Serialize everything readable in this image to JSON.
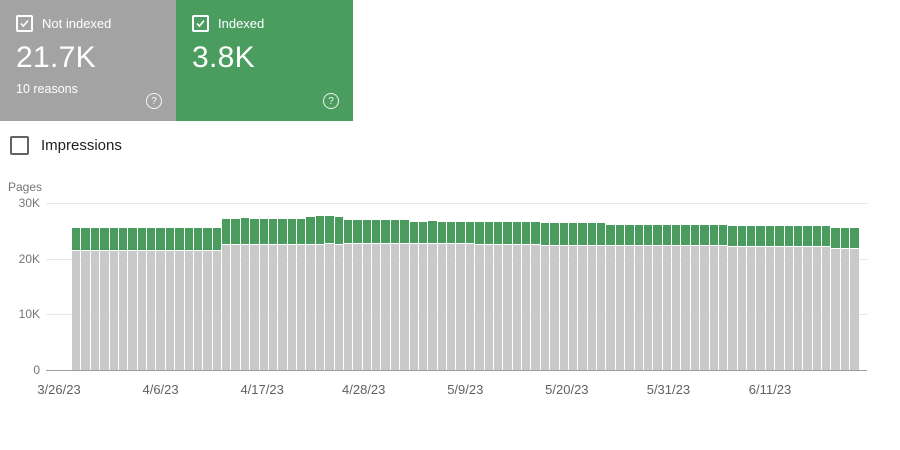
{
  "cards": {
    "not_indexed": {
      "label": "Not indexed",
      "value": "21.7K",
      "subtext": "10 reasons",
      "checked": true,
      "bg_color": "#a3a3a3"
    },
    "indexed": {
      "label": "Indexed",
      "value": "3.8K",
      "checked": true,
      "bg_color": "#4a9d5f"
    }
  },
  "impressions": {
    "label": "Impressions",
    "checked": false
  },
  "chart_data": {
    "type": "bar",
    "stacked": true,
    "title": "",
    "ylabel": "Pages",
    "unit": "K pages",
    "ylim": [
      0,
      30
    ],
    "grid": true,
    "y_ticks": [
      {
        "value": 0,
        "label": "0"
      },
      {
        "value": 10,
        "label": "10K"
      },
      {
        "value": 20,
        "label": "20K"
      },
      {
        "value": 30,
        "label": "30K"
      }
    ],
    "x_tick_labels": [
      "3/26/23",
      "4/6/23",
      "4/17/23",
      "4/28/23",
      "5/9/23",
      "5/20/23",
      "5/31/23",
      "6/11/23"
    ],
    "date_range": {
      "start": "3/26/23",
      "end": "6/17/23",
      "interval": "daily"
    },
    "legend": [
      {
        "name": "Not indexed",
        "color": "#c9c9c9"
      },
      {
        "name": "Indexed",
        "color": "#4a9c5e"
      }
    ],
    "series": [
      {
        "name": "Not indexed",
        "color": "#c9c9c9",
        "values": [
          21.3,
          21.3,
          21.4,
          21.3,
          21.3,
          21.4,
          21.3,
          21.3,
          21.3,
          21.4,
          21.3,
          21.3,
          21.4,
          21.3,
          21.3,
          21.3,
          22.4,
          22.4,
          22.5,
          22.4,
          22.4,
          22.4,
          22.5,
          22.4,
          22.4,
          22.5,
          22.5,
          22.6,
          22.5,
          22.6,
          22.6,
          22.6,
          22.7,
          22.6,
          22.6,
          22.6,
          22.7,
          22.7,
          22.7,
          22.7,
          22.7,
          22.7,
          22.7,
          22.4,
          22.4,
          22.4,
          22.4,
          22.4,
          22.4,
          22.4,
          22.3,
          22.3,
          22.3,
          22.3,
          22.3,
          22.3,
          22.3,
          22.2,
          22.2,
          22.2,
          22.2,
          22.2,
          22.2,
          22.2,
          22.2,
          22.2,
          22.2,
          22.2,
          22.2,
          22.2,
          22.1,
          22.1,
          22.1,
          22.1,
          22.1,
          22.1,
          22.1,
          22.1,
          22.1,
          22.1,
          22.1,
          21.7,
          21.7,
          21.7
        ]
      },
      {
        "name": "Indexed",
        "color": "#4a9c5e",
        "values": [
          4.2,
          4.3,
          4.2,
          4.2,
          4.3,
          4.2,
          4.2,
          4.3,
          4.2,
          4.2,
          4.3,
          4.2,
          4.2,
          4.3,
          4.2,
          4.2,
          4.7,
          4.7,
          4.8,
          4.7,
          4.7,
          4.8,
          4.7,
          4.7,
          4.7,
          5.0,
          5.1,
          5.0,
          5.0,
          4.3,
          4.3,
          4.4,
          4.3,
          4.3,
          4.3,
          4.3,
          3.9,
          3.9,
          4.0,
          3.9,
          3.9,
          3.9,
          3.9,
          4.2,
          4.2,
          4.2,
          4.2,
          4.2,
          4.2,
          4.2,
          4.2,
          4.2,
          4.2,
          4.2,
          4.2,
          4.2,
          4.2,
          3.9,
          3.9,
          3.9,
          3.9,
          3.9,
          3.9,
          3.9,
          3.9,
          3.9,
          3.9,
          3.9,
          3.9,
          3.9,
          3.8,
          3.8,
          3.8,
          3.8,
          3.8,
          3.8,
          3.8,
          3.8,
          3.8,
          3.8,
          3.8,
          3.8,
          3.8,
          3.8
        ]
      }
    ]
  }
}
